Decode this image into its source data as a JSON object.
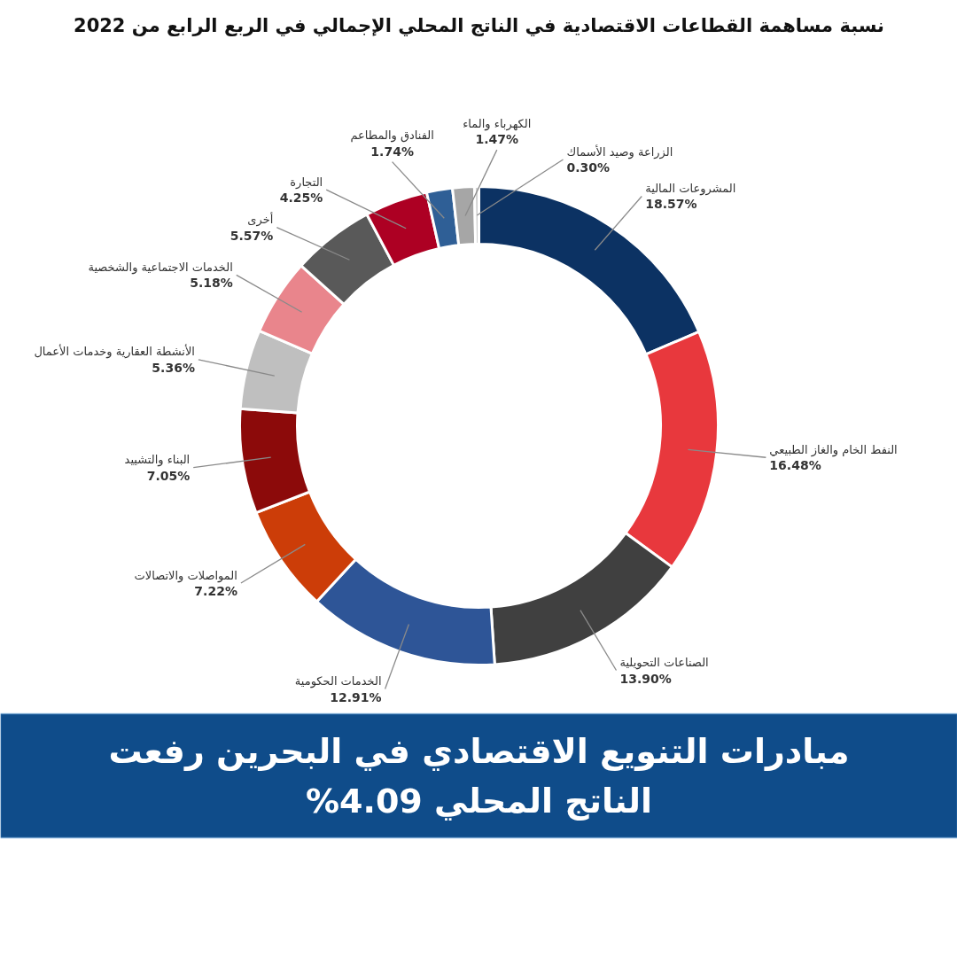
{
  "chart_data": {
    "type": "donut",
    "title": "نسبة مساهمة القطاعات الاقتصادية في الناتج المحلي الإجمالي في الربع الرابع من 2022",
    "categories": [
      "المشروعات المالية",
      "النفط الخام والغاز الطبيعي",
      "الصناعات التحويلية",
      "الخدمات الحكومية",
      "المواصلات والاتصالات",
      "البناء والتشييد",
      "الأنشطة العقارية وخدمات الأعمال",
      "الخدمات الاجتماعية والشخصية",
      "أخرى",
      "التجارة",
      "الفنادق والمطاعم",
      "الكهرباء والماء",
      "الزراعة وصيد الأسماك"
    ],
    "values": [
      18.57,
      16.48,
      13.9,
      12.91,
      7.22,
      7.05,
      5.36,
      5.18,
      5.57,
      4.25,
      1.74,
      1.47,
      0.3
    ],
    "value_labels": [
      "18.57%",
      "16.48%",
      "13.90%",
      "12.91%",
      "7.22%",
      "7.05%",
      "5.36%",
      "5.18%",
      "5.57%",
      "4.25%",
      "1.74%",
      "1.47%",
      "0.30%"
    ],
    "colors": [
      "#0c3263",
      "#e8383d",
      "#404040",
      "#2e5597",
      "#cc3d08",
      "#8c0a0a",
      "#bfbfbf",
      "#e9858c",
      "#595959",
      "#ad0023",
      "#2f5f96",
      "#a6a6a6",
      "#d0d0d0"
    ],
    "annotations": [
      "مبادرات التنويع الاقتصادي في البحرين رفعت الناتج المحلي 4.09%"
    ]
  }
}
